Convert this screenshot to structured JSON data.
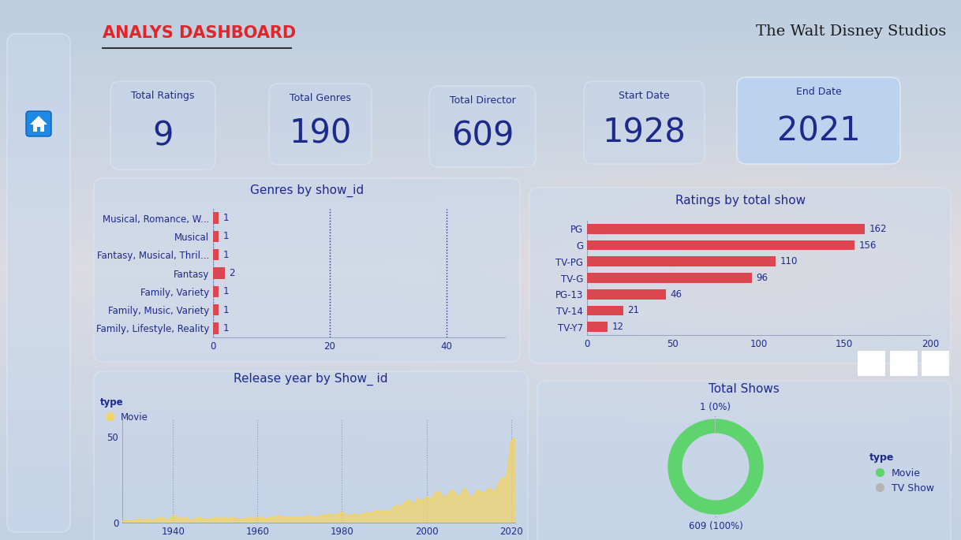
{
  "header": {
    "title": "ANALYS DASHBOARD",
    "logo": "The Walt Disney Studios"
  },
  "cards": [
    {
      "label": "Total Ratings",
      "value": 9
    },
    {
      "label": "Total Genres",
      "value": 190
    },
    {
      "label": "Total Director",
      "value": 609
    },
    {
      "label": "Start Date",
      "value": 1928
    },
    {
      "label": "End Date",
      "value": 2021
    }
  ],
  "chart_data": [
    {
      "type": "bar",
      "title": "Genres by show_id",
      "orientation": "horizontal",
      "categories": [
        "Musical, Romance, W...",
        "Musical",
        "Fantasy, Musical, Thril...",
        "Fantasy",
        "Family, Variety",
        "Family, Music, Variety",
        "Family, Lifestyle, Reality"
      ],
      "values": [
        1,
        1,
        1,
        2,
        1,
        1,
        1
      ],
      "color": "#dc4650",
      "xlim": [
        0,
        50
      ],
      "xticks": [
        0,
        20,
        40
      ],
      "grid": true,
      "data_labels": true
    },
    {
      "type": "bar",
      "title": "Ratings by total show",
      "orientation": "horizontal",
      "categories": [
        "PG",
        "G",
        "TV-PG",
        "TV-G",
        "PG-13",
        "TV-14",
        "TV-Y7"
      ],
      "values": [
        162,
        156,
        110,
        96,
        46,
        21,
        12
      ],
      "color": "#dc4650",
      "xlim": [
        0,
        200
      ],
      "xticks": [
        0,
        50,
        100,
        150,
        200
      ],
      "grid": false,
      "data_labels": true
    },
    {
      "type": "area",
      "title": "Release year by Show_ id",
      "legend_title": "type",
      "legend": "upper left",
      "x": [
        1928,
        1929,
        1930,
        1931,
        1932,
        1933,
        1934,
        1935,
        1936,
        1937,
        1938,
        1939,
        1940,
        1941,
        1942,
        1943,
        1944,
        1945,
        1946,
        1947,
        1948,
        1949,
        1950,
        1951,
        1952,
        1953,
        1954,
        1955,
        1956,
        1957,
        1958,
        1959,
        1960,
        1961,
        1962,
        1963,
        1964,
        1965,
        1966,
        1967,
        1968,
        1969,
        1970,
        1971,
        1972,
        1973,
        1974,
        1975,
        1976,
        1977,
        1978,
        1979,
        1980,
        1981,
        1982,
        1983,
        1984,
        1985,
        1986,
        1987,
        1988,
        1989,
        1990,
        1991,
        1992,
        1993,
        1994,
        1995,
        1996,
        1997,
        1998,
        1999,
        2000,
        2001,
        2002,
        2003,
        2004,
        2005,
        2006,
        2007,
        2008,
        2009,
        2010,
        2011,
        2012,
        2013,
        2014,
        2015,
        2016,
        2017,
        2018,
        2019,
        2020,
        2021
      ],
      "series": [
        {
          "name": "Movie",
          "color": "#f0d36a",
          "values": [
            1,
            1,
            1,
            1,
            2,
            1,
            2,
            1,
            2,
            3,
            2,
            1,
            4,
            3,
            2,
            3,
            1,
            2,
            3,
            2,
            2,
            2,
            3,
            2,
            3,
            2,
            3,
            2,
            2,
            2,
            3,
            2,
            3,
            3,
            2,
            3,
            3,
            4,
            3,
            3,
            3,
            3,
            3,
            3,
            4,
            3,
            3,
            4,
            4,
            5,
            4,
            5,
            6,
            4,
            4,
            5,
            4,
            5,
            6,
            5,
            7,
            6,
            7,
            6,
            8,
            10,
            9,
            12,
            13,
            10,
            14,
            12,
            15,
            13,
            17,
            18,
            14,
            16,
            19,
            16,
            15,
            20,
            16,
            14,
            19,
            17,
            18,
            20,
            17,
            22,
            26,
            25,
            47,
            49
          ]
        }
      ],
      "xlim": [
        1928,
        2021
      ],
      "xticks": [
        1940,
        1960,
        1980,
        2000,
        2020
      ],
      "ylim": [
        0,
        60
      ],
      "yticks": [
        0,
        50
      ],
      "grid": true
    },
    {
      "type": "donut",
      "title": "Total Shows",
      "legend_title": "type",
      "legend": "center right",
      "categories": [
        "Movie",
        "TV Show"
      ],
      "values": [
        609,
        1
      ],
      "value_labels": [
        "609 (100%)",
        "1 (0%)"
      ],
      "colors": [
        "#5fd36e",
        "#b4b4b4"
      ],
      "data_labels": true
    }
  ]
}
